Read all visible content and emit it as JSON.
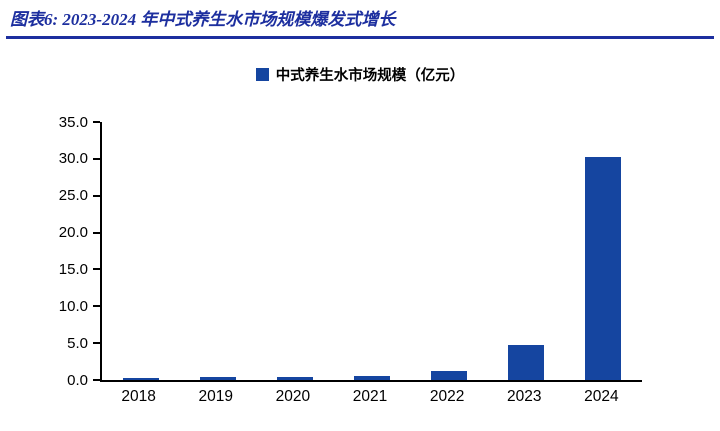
{
  "header": {
    "title": "图表6:  2023-2024 年中式养生水市场规模爆发式增长"
  },
  "legend": {
    "label": "中式养生水市场规模（亿元）"
  },
  "colors": {
    "accent": "#1545a0",
    "title": "#1d2f9f",
    "divider": "#1d2f9f"
  },
  "chart_data": {
    "type": "bar",
    "title": "2023-2024 年中式养生水市场规模爆发式增长",
    "series_name": "中式养生水市场规模（亿元）",
    "categories": [
      "2018",
      "2019",
      "2020",
      "2021",
      "2022",
      "2023",
      "2024"
    ],
    "values": [
      0.3,
      0.4,
      0.4,
      0.6,
      1.2,
      4.7,
      30.2
    ],
    "xlabel": "",
    "ylabel": "",
    "ylim": [
      0,
      35
    ],
    "ytick_step": 5,
    "ytick_labels": [
      "0.0",
      "5.0",
      "10.0",
      "15.0",
      "20.0",
      "25.0",
      "30.0",
      "35.0"
    ],
    "grid": false,
    "legend_position": "top",
    "bar_color": "#1545a0"
  }
}
